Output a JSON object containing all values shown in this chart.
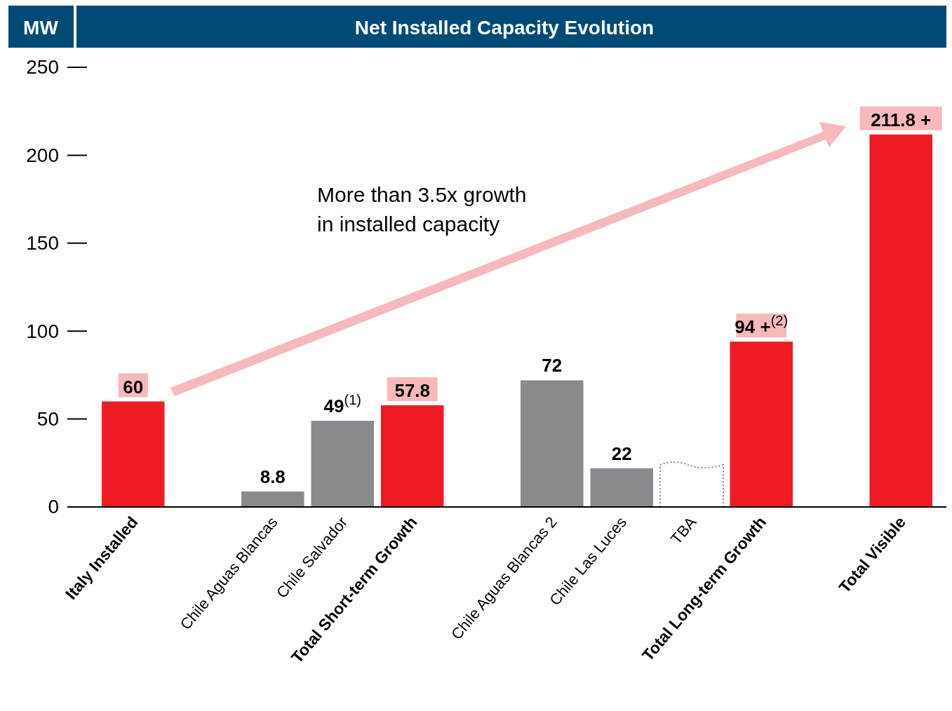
{
  "chart_data": {
    "type": "bar",
    "title": "Net Installed Capacity Evolution",
    "ylabel": "MW",
    "categories": [
      "Italy Installed",
      null,
      "Chile Aguas Blancas",
      "Chile Salvador",
      "Total Short-term Growth",
      null,
      "Chile Aguas Blancas 2",
      "Chile Las Luces",
      "TBA",
      "Total Long-term Growth",
      null,
      "Total Visible"
    ],
    "values": [
      60,
      null,
      8.8,
      49,
      57.8,
      null,
      72,
      22,
      null,
      94,
      null,
      211.8
    ],
    "colors": [
      "#ed1c24",
      null,
      "#898a8d",
      "#898a8d",
      "#ed1c24",
      null,
      "#898a8d",
      "#898a8d",
      null,
      "#ed1c24",
      null,
      "#ed1c24"
    ],
    "value_labels": [
      "60",
      null,
      "8.8",
      "49$^{(1)}$",
      "57.8",
      null,
      "72",
      "22",
      null,
      "94 +$^{(2)}$",
      null,
      "211.8 +"
    ],
    "ylim": [
      0,
      250
    ],
    "yticks": [
      0,
      50,
      100,
      150,
      200,
      250
    ],
    "grid": false,
    "annotations": [
      "More than 3.5x growth\nin installed capacity"
    ]
  }
}
